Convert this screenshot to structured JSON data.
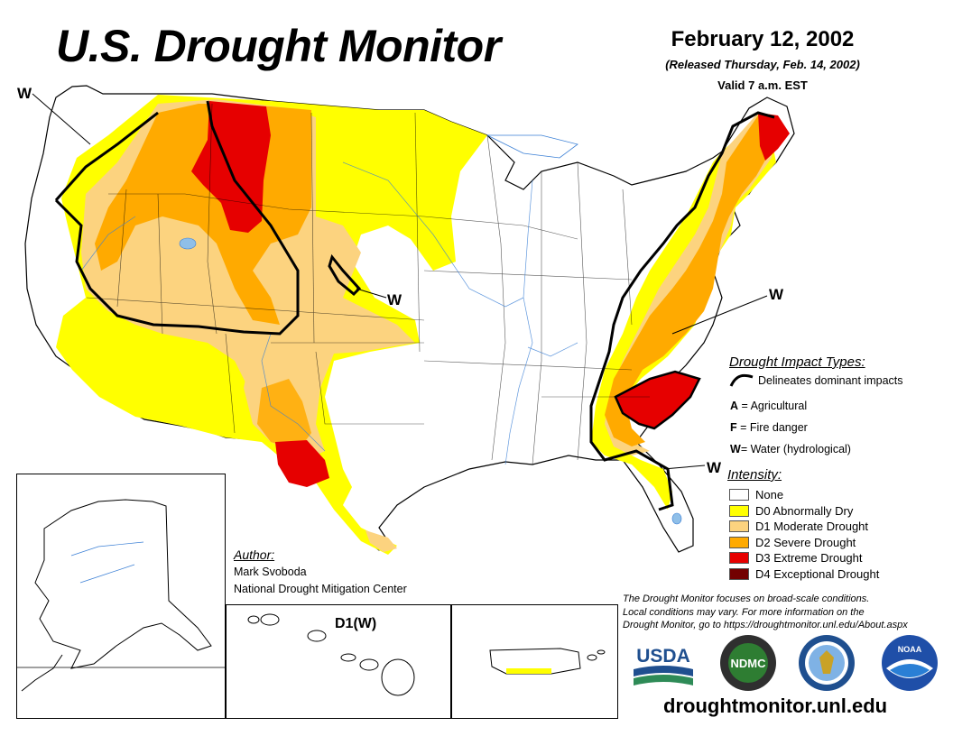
{
  "header": {
    "title": "U.S. Drought Monitor",
    "date": "February 12, 2002",
    "released": "(Released Thursday, Feb. 14, 2002)",
    "valid": "Valid 7 a.m. EST"
  },
  "map_labels": {
    "w_northwest": "W",
    "w_central": "W",
    "w_east": "W",
    "w_southeast": "W",
    "hawaii": "D1(W)"
  },
  "legend": {
    "impact_title": "Drought Impact Types:",
    "impact_line_label": "Delineates dominant impacts",
    "impacts": [
      {
        "code": "A",
        "label": "= Agricultural"
      },
      {
        "code": "F",
        "label": "= Fire danger"
      },
      {
        "code": "W",
        "label": "= Water (hydrological)"
      }
    ],
    "intensity_title": "Intensity:",
    "intensity": [
      {
        "label": "None",
        "color": "#ffffff"
      },
      {
        "label": "D0 Abnormally Dry",
        "color": "#ffff00"
      },
      {
        "label": "D1 Moderate Drought",
        "color": "#fcd37f"
      },
      {
        "label": "D2 Severe Drought",
        "color": "#ffaa00"
      },
      {
        "label": "D3 Extreme Drought",
        "color": "#e60000"
      },
      {
        "label": "D4 Exceptional Drought",
        "color": "#730000"
      }
    ]
  },
  "author": {
    "title": "Author:",
    "name": "Mark Svoboda",
    "org": "National Drought Mitigation Center"
  },
  "note": {
    "line1": "The Drought Monitor focuses on broad-scale conditions.",
    "line2": "Local conditions may vary. For more information on the",
    "line3": "Drought Monitor, go to https://droughtmonitor.unl.edu/About.aspx"
  },
  "logos": {
    "usda": "USDA",
    "ndmc": "NDMC",
    "noaa": "NOAA"
  },
  "footer": {
    "url": "droughtmonitor.unl.edu"
  }
}
